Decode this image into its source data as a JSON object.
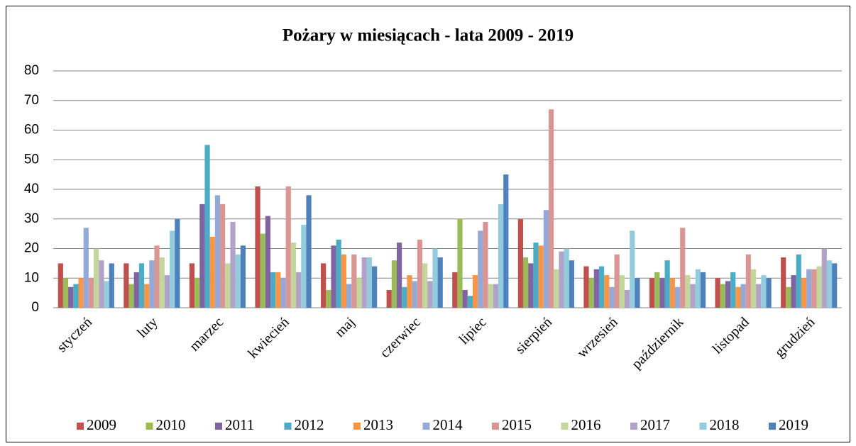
{
  "chart_data": {
    "type": "bar",
    "title": "Pożary w  miesiącach - lata 2009 - 2019",
    "categories": [
      "styczeń",
      "luty",
      "marzec",
      "kwiecień",
      "maj",
      "czerwiec",
      "lipiec",
      "sierpień",
      "wrzesień",
      "październik",
      "listopad",
      "grudzień"
    ],
    "series": [
      {
        "name": "2009",
        "color": "#c0504d",
        "values": [
          15,
          15,
          15,
          41,
          15,
          6,
          12,
          30,
          14,
          10,
          10,
          17
        ]
      },
      {
        "name": "2010",
        "color": "#9bbb59",
        "values": [
          10,
          8,
          10,
          25,
          6,
          16,
          30,
          17,
          10,
          12,
          8,
          7
        ]
      },
      {
        "name": "2011",
        "color": "#8064a2",
        "values": [
          7,
          12,
          35,
          31,
          21,
          22,
          6,
          15,
          13,
          10,
          9,
          11
        ]
      },
      {
        "name": "2012",
        "color": "#4bacc6",
        "values": [
          8,
          15,
          55,
          12,
          23,
          7,
          4,
          22,
          14,
          16,
          12,
          18
        ]
      },
      {
        "name": "2013",
        "color": "#f79646",
        "values": [
          10,
          8,
          24,
          12,
          18,
          11,
          11,
          21,
          11,
          10,
          7,
          10
        ]
      },
      {
        "name": "2014",
        "color": "#95a9d9",
        "values": [
          27,
          16,
          38,
          10,
          8,
          9,
          26,
          33,
          7,
          7,
          8,
          13
        ]
      },
      {
        "name": "2015",
        "color": "#d99694",
        "values": [
          10,
          21,
          35,
          41,
          18,
          23,
          29,
          67,
          18,
          27,
          18,
          13
        ]
      },
      {
        "name": "2016",
        "color": "#c3d69b",
        "values": [
          20,
          17,
          15,
          22,
          10,
          15,
          8,
          13,
          11,
          11,
          13,
          14
        ]
      },
      {
        "name": "2017",
        "color": "#b3a2c7",
        "values": [
          16,
          11,
          29,
          12,
          17,
          9,
          8,
          19,
          6,
          8,
          8,
          20
        ]
      },
      {
        "name": "2018",
        "color": "#93cddd",
        "values": [
          9,
          26,
          18,
          28,
          17,
          20,
          35,
          20,
          26,
          13,
          11,
          16
        ]
      },
      {
        "name": "2019",
        "color": "#4f81bd",
        "values": [
          15,
          30,
          21,
          38,
          14,
          17,
          45,
          16,
          10,
          12,
          10,
          15
        ]
      }
    ],
    "ylim": [
      0,
      80
    ],
    "yticks": [
      0,
      10,
      20,
      30,
      40,
      50,
      60,
      70,
      80
    ],
    "grid": true,
    "legend": "bottom"
  }
}
